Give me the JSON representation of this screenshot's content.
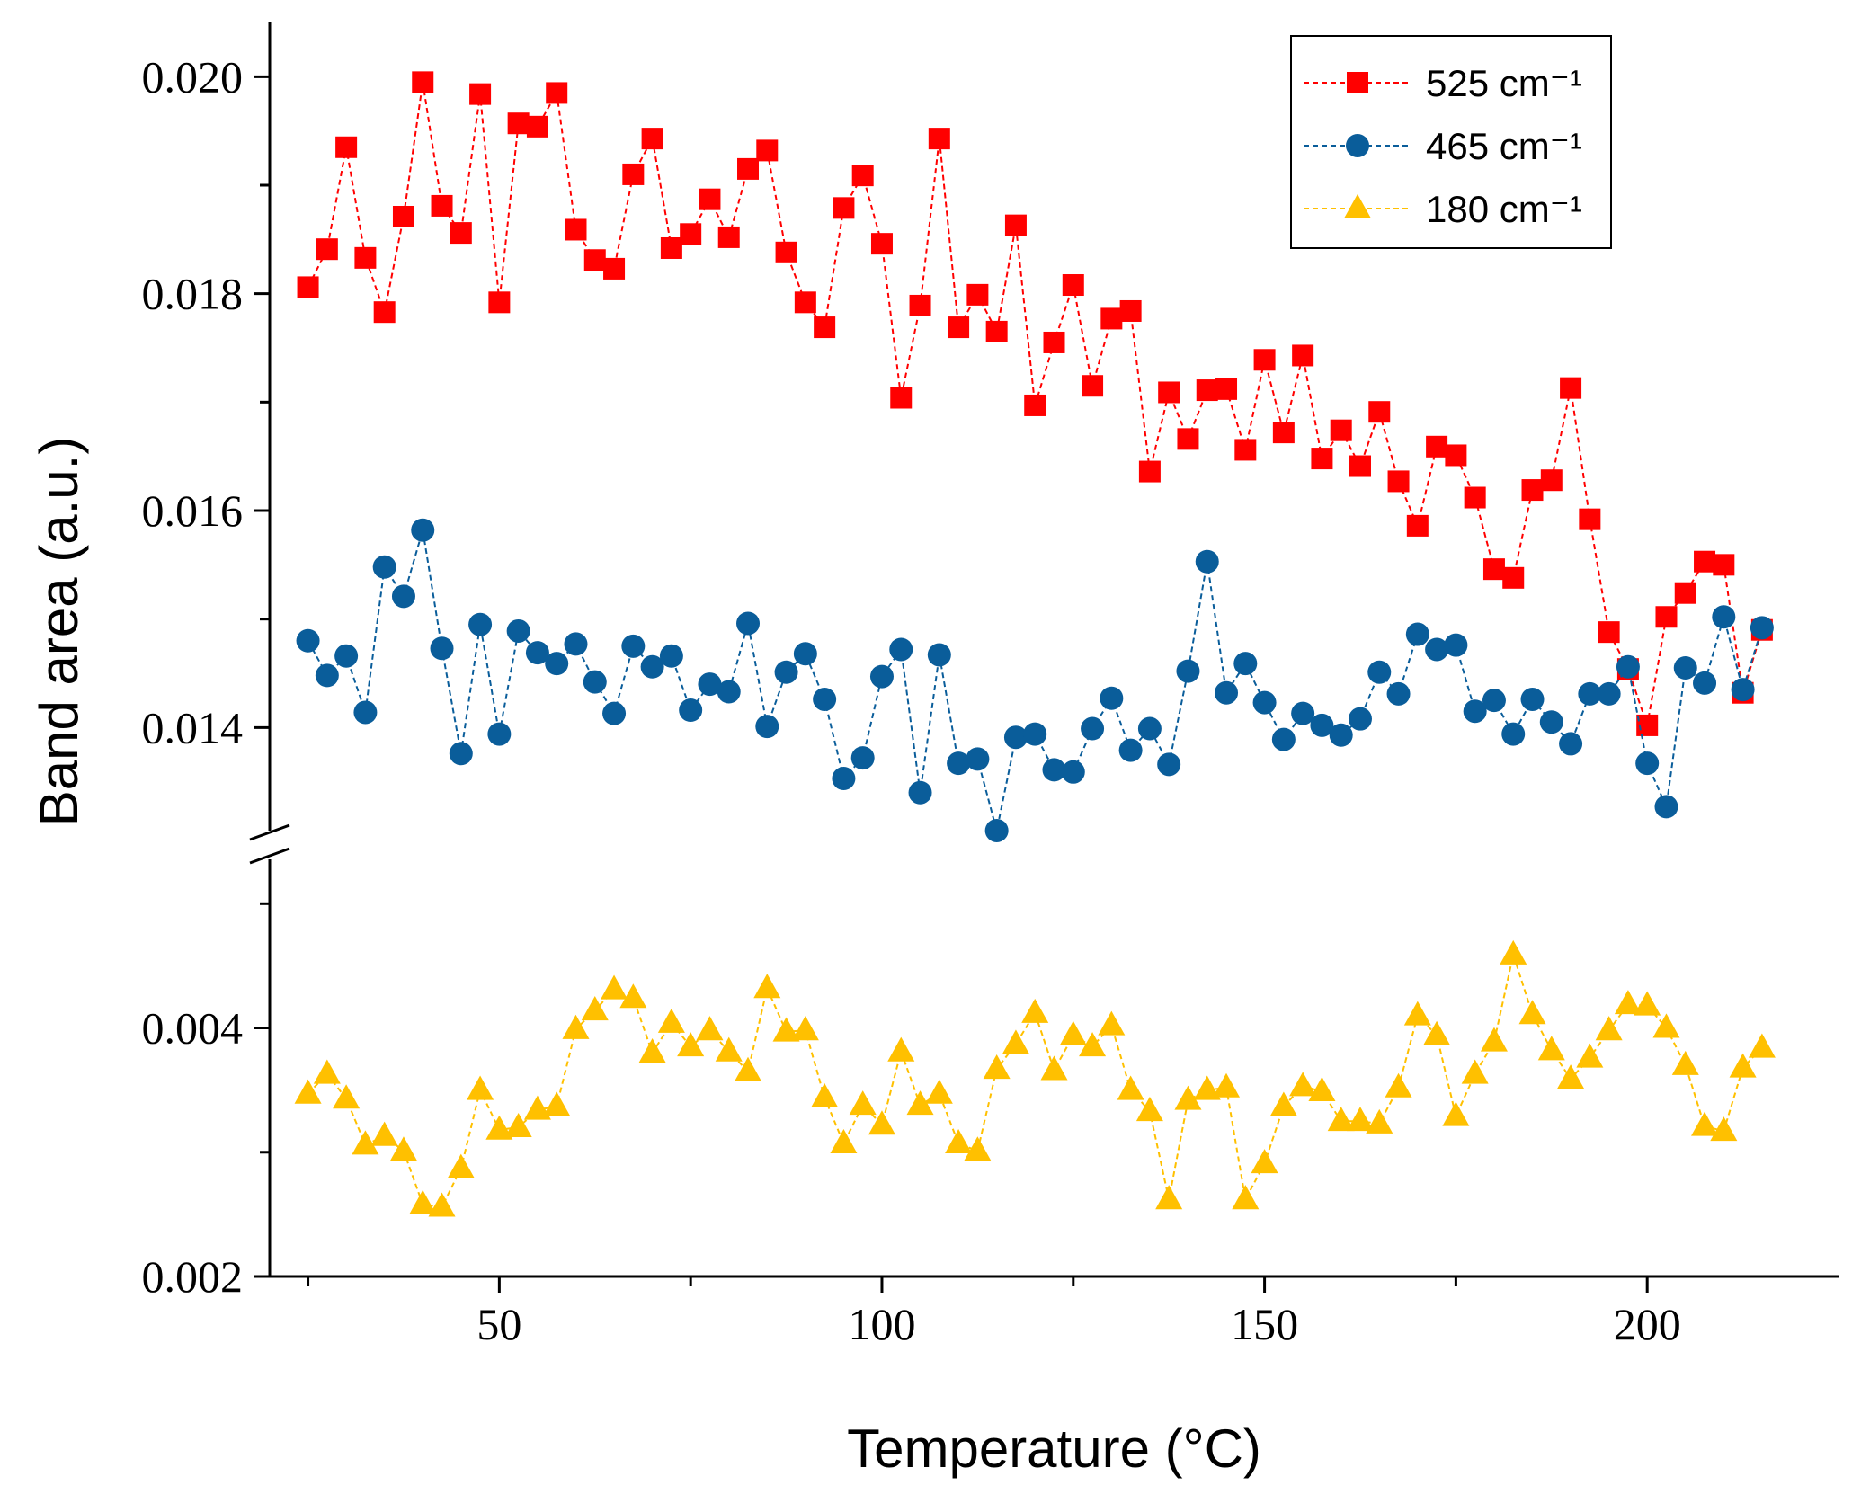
{
  "chart_data": {
    "type": "scatter",
    "xlabel": "Temperature (°C)",
    "ylabel": "Band area (a.u.)",
    "xlim": [
      20,
      225
    ],
    "x_ticks": [
      50,
      100,
      150,
      200
    ],
    "y_break": true,
    "y_lower_range": [
      0.002,
      0.0054
    ],
    "y_upper_range": [
      0.013,
      0.0205
    ],
    "y_ticks": [
      0.002,
      0.004,
      0.014,
      0.016,
      0.018,
      0.02
    ],
    "y_tick_labels": [
      "0.002",
      "0.004",
      "0.014",
      "0.016",
      "0.018",
      "0.020"
    ],
    "legend_position": "top-right",
    "linestyle": "dashed",
    "x": [
      25,
      27.5,
      30,
      32.5,
      35,
      37.5,
      40,
      42.5,
      45,
      47.5,
      50,
      52.5,
      55,
      57.5,
      60,
      62.5,
      65,
      67.5,
      70,
      72.5,
      75,
      77.5,
      80,
      82.5,
      85,
      87.5,
      90,
      92.5,
      95,
      97.5,
      100,
      102.5,
      105,
      107.5,
      110,
      112.5,
      115,
      117.5,
      120,
      122.5,
      125,
      127.5,
      130,
      132.5,
      135,
      137.5,
      140,
      142.5,
      145,
      147.5,
      150,
      152.5,
      155,
      157.5,
      160,
      162.5,
      165,
      167.5,
      170,
      172.5,
      175,
      177.5,
      180,
      182.5,
      185,
      187.5,
      190,
      192.5,
      195,
      197.5,
      200,
      202.5,
      205,
      207.5,
      210,
      212.5,
      215
    ],
    "series": [
      {
        "name": "525 cm⁻¹",
        "color": "#ff0000",
        "marker": "square",
        "values": [
          0.01806,
          0.01841,
          0.01935,
          0.01833,
          0.01783,
          0.01871,
          0.01995,
          0.01881,
          0.01856,
          0.01984,
          0.01792,
          0.01957,
          0.01954,
          0.01985,
          0.01859,
          0.01831,
          0.01823,
          0.0191,
          0.01943,
          0.01842,
          0.01855,
          0.01887,
          0.01852,
          0.01915,
          0.01932,
          0.01838,
          0.01792,
          0.01769,
          0.01879,
          0.01909,
          0.01846,
          0.01704,
          0.01789,
          0.01943,
          0.01769,
          0.01799,
          0.01765,
          0.01863,
          0.01697,
          0.01755,
          0.01808,
          0.01715,
          0.01777,
          0.01784,
          0.01636,
          0.01709,
          0.01666,
          0.01711,
          0.01712,
          0.01656,
          0.01739,
          0.01672,
          0.01743,
          0.01648,
          0.01674,
          0.01641,
          0.01691,
          0.01627,
          0.01586,
          0.01659,
          0.01651,
          0.01612,
          0.01546,
          0.01538,
          0.01619,
          0.01628,
          0.01713,
          0.01592,
          0.01488,
          0.01454,
          0.01402,
          0.01502,
          0.01524,
          0.01553,
          0.0155,
          0.01432,
          0.0149
        ]
      },
      {
        "name": "465 cm⁻¹",
        "color": "#0a5d9a",
        "marker": "circle",
        "values": [
          0.0148,
          0.01448,
          0.01466,
          0.01414,
          0.01548,
          0.01521,
          0.01582,
          0.01473,
          0.01376,
          0.01495,
          0.01394,
          0.01489,
          0.01469,
          0.01459,
          0.01477,
          0.01442,
          0.01413,
          0.01475,
          0.01456,
          0.01466,
          0.01416,
          0.0144,
          0.01433,
          0.01496,
          0.01401,
          0.01451,
          0.01468,
          0.01426,
          0.01353,
          0.01372,
          0.01447,
          0.01472,
          0.0134,
          0.01467,
          0.01367,
          0.01371,
          0.01305,
          0.01391,
          0.01394,
          0.01361,
          0.01359,
          0.01399,
          0.01427,
          0.01379,
          0.01399,
          0.01366,
          0.01452,
          0.01553,
          0.01432,
          0.01459,
          0.01423,
          0.01389,
          0.01413,
          0.01402,
          0.01393,
          0.01408,
          0.01451,
          0.01431,
          0.01486,
          0.01472,
          0.01476,
          0.01415,
          0.01425,
          0.01394,
          0.01426,
          0.01405,
          0.01385,
          0.01431,
          0.01431,
          0.01456,
          0.01367,
          0.01327,
          0.01455,
          0.01441,
          0.01502,
          0.01435,
          0.01492
        ]
      },
      {
        "name": "180 cm⁻¹",
        "color": "#ffc000",
        "marker": "triangle",
        "values": [
          0.00347,
          0.00363,
          0.00343,
          0.00306,
          0.00313,
          0.00301,
          0.00258,
          0.00256,
          0.00287,
          0.0035,
          0.00318,
          0.0032,
          0.00334,
          0.00337,
          0.00399,
          0.00414,
          0.00431,
          0.00424,
          0.0038,
          0.00404,
          0.00385,
          0.00398,
          0.00381,
          0.00365,
          0.00432,
          0.00397,
          0.00398,
          0.00344,
          0.00307,
          0.00338,
          0.00322,
          0.00381,
          0.00338,
          0.00347,
          0.00307,
          0.00301,
          0.00367,
          0.00387,
          0.00412,
          0.00366,
          0.00394,
          0.00385,
          0.00402,
          0.0035,
          0.00333,
          0.00262,
          0.00342,
          0.0035,
          0.00352,
          0.00262,
          0.00291,
          0.00337,
          0.00353,
          0.00349,
          0.00325,
          0.00325,
          0.00323,
          0.00352,
          0.0041,
          0.00394,
          0.00329,
          0.00363,
          0.00389,
          0.00459,
          0.00411,
          0.00382,
          0.00359,
          0.00376,
          0.00398,
          0.00419,
          0.00418,
          0.004,
          0.0037,
          0.00321,
          0.00317,
          0.00368,
          0.00384
        ]
      }
    ]
  }
}
